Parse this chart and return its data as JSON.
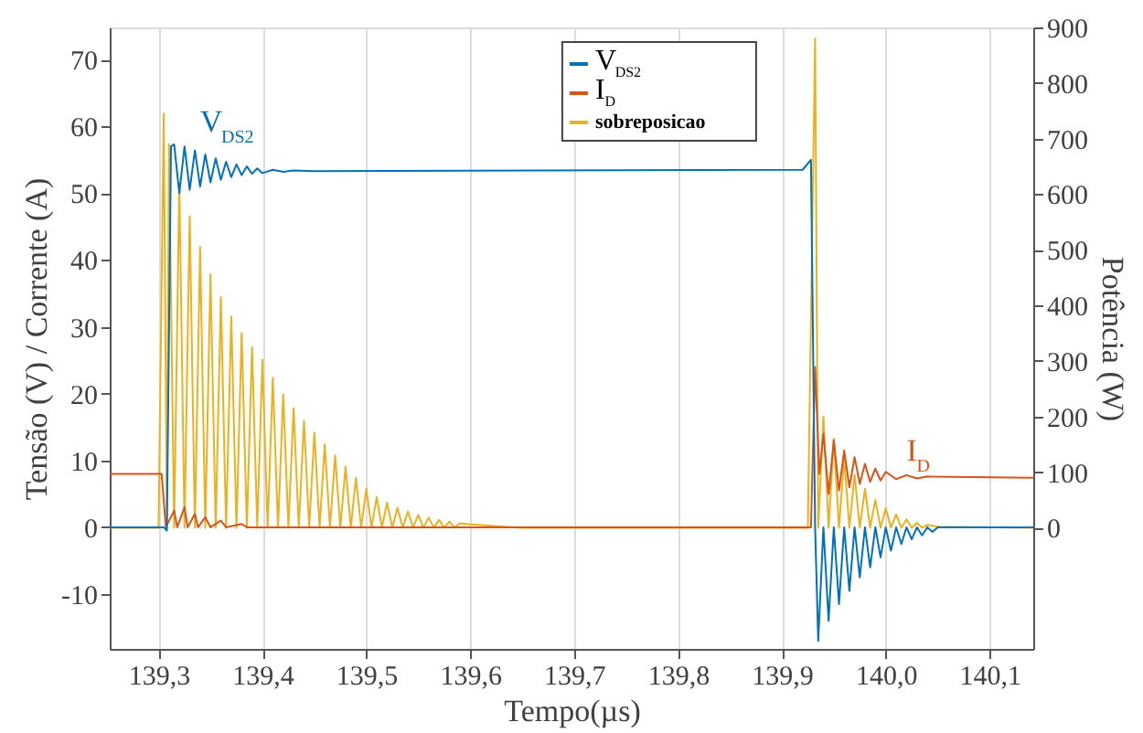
{
  "chart_data": {
    "type": "line",
    "xlabel": "Tempo(µs)",
    "ylabel": "Tensão (V) / Corrente (A)",
    "y2label": "Potência (W)",
    "xlim": [
      139.253,
      140.142
    ],
    "ylim": [
      -18.2,
      74.8
    ],
    "y2lim": [
      -218,
      900
    ],
    "xticks": [
      {
        "value": 139.3,
        "label": "139,3"
      },
      {
        "value": 139.4,
        "label": "139,4"
      },
      {
        "value": 139.5,
        "label": "139,5"
      },
      {
        "value": 139.6,
        "label": "139,6"
      },
      {
        "value": 139.7,
        "label": "139,7"
      },
      {
        "value": 139.8,
        "label": "139,8"
      },
      {
        "value": 139.9,
        "label": "139,9"
      },
      {
        "value": 140.0,
        "label": "140,0"
      },
      {
        "value": 140.1,
        "label": "140,1"
      }
    ],
    "yticks": [
      -10,
      0,
      10,
      20,
      30,
      40,
      50,
      60,
      70
    ],
    "y2ticks": [
      0,
      100,
      200,
      300,
      400,
      500,
      600,
      700,
      800,
      900
    ],
    "grid": "x",
    "legend": "top right",
    "marker": "none",
    "line_style": "solid",
    "annotations": [
      {
        "text": "V$_{DS2}$",
        "x": 139.34,
        "y": 57
      },
      {
        "text": "I$_{D}$",
        "x": 140.02,
        "y": 7.8
      }
    ],
    "series": [
      {
        "name": "sobreposicao",
        "color": "#edb120",
        "axis": "y2",
        "x": [
          139.253,
          139.3,
          139.305,
          139.308,
          139.31,
          139.315,
          139.32,
          139.325,
          139.33,
          139.335,
          139.34,
          139.345,
          139.35,
          139.355,
          139.36,
          139.365,
          139.37,
          139.375,
          139.38,
          139.385,
          139.39,
          139.395,
          139.4,
          139.405,
          139.41,
          139.415,
          139.42,
          139.425,
          139.43,
          139.435,
          139.44,
          139.445,
          139.45,
          139.455,
          139.46,
          139.465,
          139.47,
          139.475,
          139.48,
          139.485,
          139.49,
          139.495,
          139.5,
          139.505,
          139.51,
          139.515,
          139.52,
          139.525,
          139.53,
          139.535,
          139.54,
          139.545,
          139.55,
          139.555,
          139.56,
          139.565,
          139.57,
          139.575,
          139.58,
          139.585,
          139.59,
          139.6,
          139.65,
          139.925,
          139.932,
          139.935,
          139.94,
          139.945,
          139.95,
          139.955,
          139.96,
          139.965,
          139.97,
          139.975,
          139.98,
          139.985,
          139.99,
          139.995,
          140.0,
          140.005,
          140.01,
          140.015,
          140.02,
          140.025,
          140.03,
          140.035,
          140.04,
          140.05,
          140.142
        ],
        "values": [
          0,
          0,
          745,
          0,
          690,
          0,
          620,
          0,
          560,
          0,
          505,
          0,
          456,
          0,
          415,
          0,
          380,
          0,
          350,
          0,
          325,
          0,
          302,
          0,
          270,
          0,
          240,
          0,
          215,
          0,
          192,
          0,
          171,
          0,
          150,
          0,
          130,
          0,
          110,
          0,
          90,
          0,
          70,
          0,
          55,
          0,
          45,
          0,
          36,
          0,
          29,
          0,
          23,
          0,
          18,
          0,
          14,
          0,
          11,
          0,
          8,
          6,
          0,
          0,
          880,
          0,
          200,
          0,
          160,
          0,
          125,
          0,
          95,
          0,
          70,
          0,
          50,
          0,
          35,
          0,
          24,
          0,
          15,
          0,
          9,
          0,
          5,
          2,
          0
        ]
      },
      {
        "name": "I$_{D}$",
        "color": "#d95319",
        "x": [
          139.253,
          139.303,
          139.307,
          139.315,
          139.318,
          139.325,
          139.328,
          139.335,
          139.338,
          139.345,
          139.35,
          139.36,
          139.365,
          139.38,
          139.385,
          139.928,
          139.932,
          139.936,
          139.94,
          139.945,
          139.95,
          139.955,
          139.96,
          139.965,
          139.97,
          139.975,
          139.98,
          139.985,
          139.99,
          139.995,
          140.0,
          140.01,
          140.02,
          140.03,
          140.04,
          140.142
        ],
        "values": [
          8,
          8,
          0,
          2.5,
          0,
          3,
          0,
          2,
          0,
          1.5,
          0,
          1,
          0,
          0.5,
          0,
          0,
          24,
          8,
          14,
          5,
          13,
          5.5,
          11.5,
          6,
          10.5,
          6.5,
          9.5,
          6.8,
          8.8,
          7,
          8.3,
          7.2,
          7.8,
          7.3,
          7.6,
          7.4
        ]
      },
      {
        "name": "V$_{DS2}$",
        "color": "#0072bd",
        "x": [
          139.253,
          139.305,
          139.308,
          139.312,
          139.315,
          139.32,
          139.325,
          139.33,
          139.335,
          139.34,
          139.345,
          139.35,
          139.355,
          139.36,
          139.365,
          139.37,
          139.375,
          139.38,
          139.385,
          139.39,
          139.395,
          139.4,
          139.41,
          139.42,
          139.43,
          139.45,
          139.92,
          139.928,
          139.932,
          139.935,
          139.94,
          139.945,
          139.95,
          139.955,
          139.96,
          139.965,
          139.97,
          139.975,
          139.98,
          139.985,
          139.99,
          139.995,
          140.0,
          140.005,
          140.01,
          140.015,
          140.02,
          140.025,
          140.03,
          140.035,
          140.04,
          140.045,
          140.05,
          140.142
        ],
        "values": [
          0,
          0,
          -0.5,
          57,
          57.3,
          50,
          57,
          50.5,
          56.4,
          51,
          55.8,
          51.6,
          55.2,
          52,
          54.7,
          52.4,
          54.3,
          52.7,
          54,
          52.9,
          53.7,
          53,
          53.5,
          53.2,
          53.4,
          53.3,
          53.5,
          55,
          0,
          -17,
          0,
          -14,
          0,
          -11.5,
          0,
          -9.5,
          0,
          -7.5,
          0,
          -6,
          0,
          -4.5,
          0,
          -3.5,
          0,
          -2.5,
          0,
          -1.8,
          0,
          -1.2,
          0,
          -0.7,
          0,
          0
        ]
      }
    ]
  }
}
